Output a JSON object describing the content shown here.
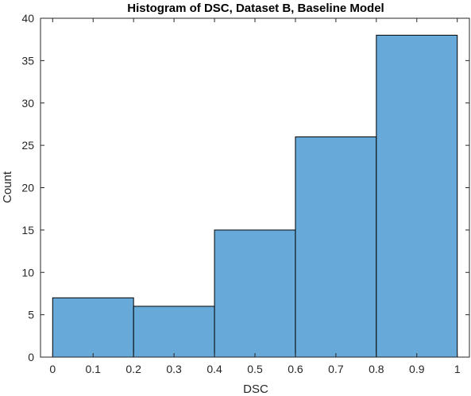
{
  "chart_data": {
    "type": "bar",
    "title": "Histogram of DSC, Dataset B, Baseline Model",
    "xlabel": "DSC",
    "ylabel": "Count",
    "bin_edges": [
      0,
      0.2,
      0.4,
      0.6,
      0.8,
      1.0
    ],
    "values": [
      7,
      6,
      15,
      26,
      38
    ],
    "xlim": [
      -0.03,
      1.03
    ],
    "ylim": [
      0,
      40
    ],
    "xticks": [
      "0",
      "0.1",
      "0.2",
      "0.3",
      "0.4",
      "0.5",
      "0.6",
      "0.7",
      "0.8",
      "0.9",
      "1"
    ],
    "xtick_values": [
      0,
      0.1,
      0.2,
      0.3,
      0.4,
      0.5,
      0.6,
      0.7,
      0.8,
      0.9,
      1.0
    ],
    "yticks": [
      "0",
      "5",
      "10",
      "15",
      "20",
      "25",
      "30",
      "35",
      "40"
    ],
    "ytick_values": [
      0,
      5,
      10,
      15,
      20,
      25,
      30,
      35,
      40
    ],
    "grid": false,
    "legend": "none",
    "colors": {
      "bar_fill": "#67a9d8",
      "bar_edge": "#000000",
      "axis": "#262626",
      "background": "#ffffff"
    }
  }
}
